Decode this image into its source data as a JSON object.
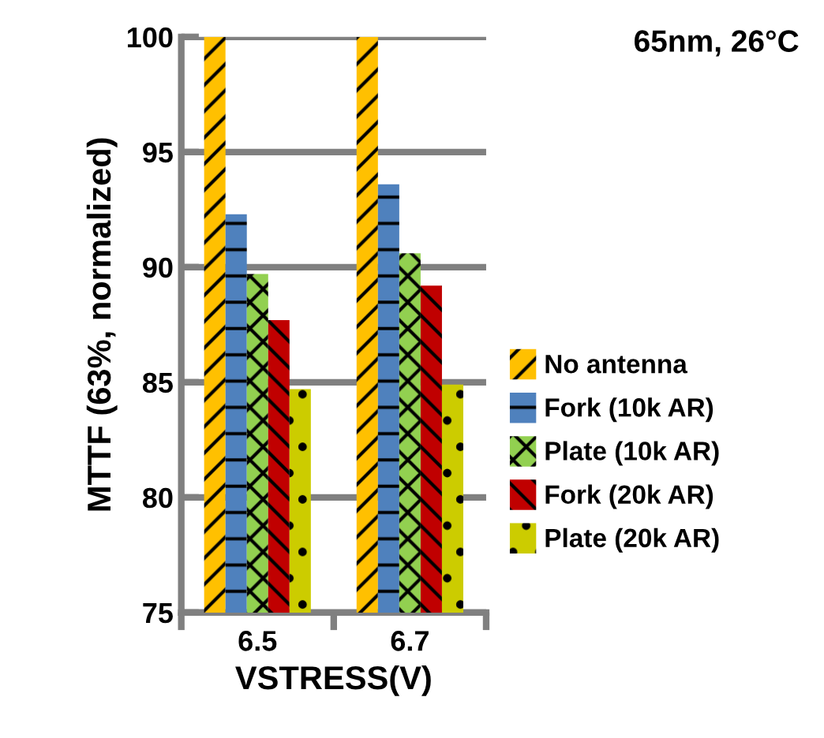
{
  "chart_data": {
    "type": "bar",
    "title": "65nm, 26°C",
    "xlabel": "VSTRESS(V)",
    "ylabel": "MTTF (63%, normalized)",
    "categories": [
      "6.5",
      "6.7"
    ],
    "series": [
      {
        "name": "No antenna",
        "color": "#ffc000",
        "values": [
          100,
          100
        ]
      },
      {
        "name": "Fork (10k AR)",
        "color": "#4f81bd",
        "values": [
          92.3,
          93.6
        ]
      },
      {
        "name": "Plate (10k AR)",
        "color": "#92d050",
        "values": [
          89.7,
          90.6
        ]
      },
      {
        "name": "Fork (20k AR)",
        "color": "#c00000",
        "values": [
          87.7,
          89.2
        ]
      },
      {
        "name": "Plate (20k AR)",
        "color": "#cccc00",
        "values": [
          84.7,
          84.9
        ]
      }
    ],
    "ylim": [
      75,
      100
    ],
    "yticks": [
      75,
      80,
      85,
      90,
      95,
      100
    ],
    "grid": "y",
    "legend": "right"
  }
}
